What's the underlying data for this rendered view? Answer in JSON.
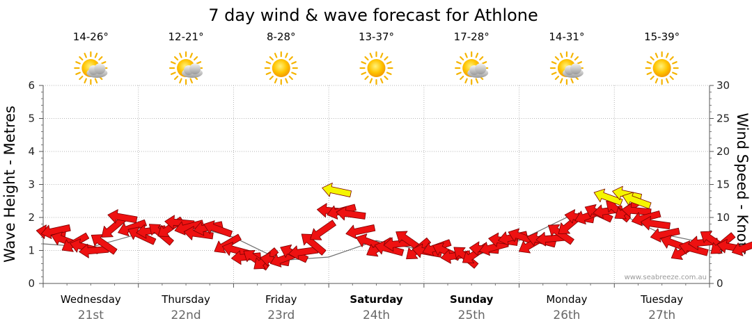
{
  "chart_data": {
    "type": "line",
    "title": "7 day wind & wave forecast for Athlone",
    "ylabel_left": "Wave Height - Metres",
    "ylabel_right": "Wind Speed - Knots",
    "ylim_left": [
      0,
      6
    ],
    "ylim_right": [
      0,
      30
    ],
    "yticks_left": [
      "0",
      "1",
      "2",
      "3",
      "4",
      "5",
      "6"
    ],
    "yticks_right": [
      "0",
      "5",
      "10",
      "15",
      "20",
      "25",
      "30"
    ],
    "grid": true,
    "days": [
      {
        "name": "Wednesday",
        "date": "21st",
        "temp": "14-26°",
        "icon": "partly-cloudy-icon",
        "weekend": false
      },
      {
        "name": "Thursday",
        "date": "22nd",
        "temp": "12-21°",
        "icon": "partly-cloudy-icon",
        "weekend": false
      },
      {
        "name": "Friday",
        "date": "23rd",
        "temp": "8-28°",
        "icon": "sunny-icon",
        "weekend": false
      },
      {
        "name": "Saturday",
        "date": "24th",
        "temp": "13-37°",
        "icon": "sunny-icon",
        "weekend": true
      },
      {
        "name": "Sunday",
        "date": "25th",
        "temp": "17-28°",
        "icon": "partly-cloudy-icon",
        "weekend": true
      },
      {
        "name": "Monday",
        "date": "26th",
        "temp": "14-31°",
        "icon": "partly-cloudy-icon",
        "weekend": false
      },
      {
        "name": "Tuesday",
        "date": "27th",
        "temp": "15-39°",
        "icon": "sunny-icon",
        "weekend": false
      }
    ],
    "x_units": "days from start",
    "series": [
      {
        "name": "Wind",
        "direction_note": "arrows point toward the west (east-to-west wind)",
        "color": "#ee1111",
        "strong_color": "#f5f500",
        "points": [
          [
            0.0,
            7.7
          ],
          [
            0.05,
            8.0
          ],
          [
            0.15,
            6.5
          ],
          [
            0.25,
            6.2
          ],
          [
            0.35,
            5.5
          ],
          [
            0.45,
            5.0
          ],
          [
            0.55,
            6.0
          ],
          [
            0.65,
            8.5
          ],
          [
            0.75,
            10.0
          ],
          [
            0.85,
            8.5
          ],
          [
            0.95,
            7.2
          ],
          [
            1.05,
            8.0
          ],
          [
            1.15,
            7.5
          ],
          [
            1.25,
            8.5
          ],
          [
            1.35,
            9.2
          ],
          [
            1.45,
            8.6
          ],
          [
            1.55,
            7.5
          ],
          [
            1.65,
            8.5
          ],
          [
            1.75,
            8.2
          ],
          [
            1.85,
            6.0
          ],
          [
            1.95,
            5.0
          ],
          [
            2.05,
            4.0
          ],
          [
            2.15,
            3.6
          ],
          [
            2.25,
            3.7
          ],
          [
            2.35,
            3.5
          ],
          [
            2.45,
            3.8
          ],
          [
            2.55,
            4.5
          ],
          [
            2.65,
            4.8
          ],
          [
            2.75,
            6.0
          ],
          [
            2.85,
            8.0
          ],
          [
            2.95,
            11.0
          ],
          [
            3.05,
            11.0
          ],
          [
            3.15,
            10.5
          ],
          [
            3.25,
            8.0
          ],
          [
            3.35,
            6.2
          ],
          [
            3.45,
            5.5
          ],
          [
            3.55,
            5.2
          ],
          [
            3.65,
            6.0
          ],
          [
            3.75,
            6.5
          ],
          [
            3.85,
            5.2
          ],
          [
            3.95,
            4.8
          ],
          [
            4.05,
            5.5
          ],
          [
            4.15,
            4.8
          ],
          [
            4.25,
            4.2
          ],
          [
            4.35,
            4.0
          ],
          [
            4.45,
            4.5
          ],
          [
            4.55,
            5.2
          ],
          [
            4.65,
            5.5
          ],
          [
            4.75,
            6.5
          ],
          [
            4.85,
            7.0
          ],
          [
            4.95,
            7.0
          ],
          [
            5.05,
            6.0
          ],
          [
            5.15,
            6.5
          ],
          [
            5.25,
            6.8
          ],
          [
            5.35,
            7.5
          ],
          [
            5.45,
            9.0
          ],
          [
            5.55,
            10.0
          ],
          [
            5.65,
            10.3
          ],
          [
            5.75,
            10.6
          ],
          [
            5.85,
            11.0
          ],
          [
            5.95,
            11.0
          ],
          [
            6.05,
            11.2
          ],
          [
            6.15,
            11.0
          ],
          [
            6.25,
            10.0
          ],
          [
            6.35,
            9.0
          ],
          [
            6.45,
            7.5
          ],
          [
            6.55,
            6.0
          ],
          [
            6.65,
            5.0
          ],
          [
            6.75,
            5.2
          ],
          [
            6.85,
            6.2
          ],
          [
            6.95,
            6.5
          ],
          [
            7.05,
            6.0
          ],
          [
            7.15,
            5.5
          ],
          [
            7.3,
            5.5
          ]
        ],
        "strong_points": [
          [
            3.0,
            14.0
          ],
          [
            5.85,
            13.0
          ],
          [
            6.05,
            13.5
          ],
          [
            6.15,
            12.5
          ]
        ]
      },
      {
        "name": "Wave",
        "color": "#111111",
        "values_m": [
          [
            0.0,
            1.2
          ],
          [
            0.5,
            1.1
          ],
          [
            1.0,
            1.5
          ],
          [
            1.5,
            1.8
          ],
          [
            2.0,
            1.4
          ],
          [
            2.5,
            0.7
          ],
          [
            3.0,
            0.8
          ],
          [
            3.5,
            1.3
          ],
          [
            4.0,
            1.0
          ],
          [
            4.5,
            0.8
          ],
          [
            5.0,
            1.3
          ],
          [
            5.5,
            2.0
          ],
          [
            6.0,
            2.2
          ],
          [
            6.5,
            1.5
          ],
          [
            7.0,
            1.2
          ],
          [
            7.3,
            1.1
          ]
        ]
      }
    ]
  },
  "credit": "www.seabreeze.com.au"
}
